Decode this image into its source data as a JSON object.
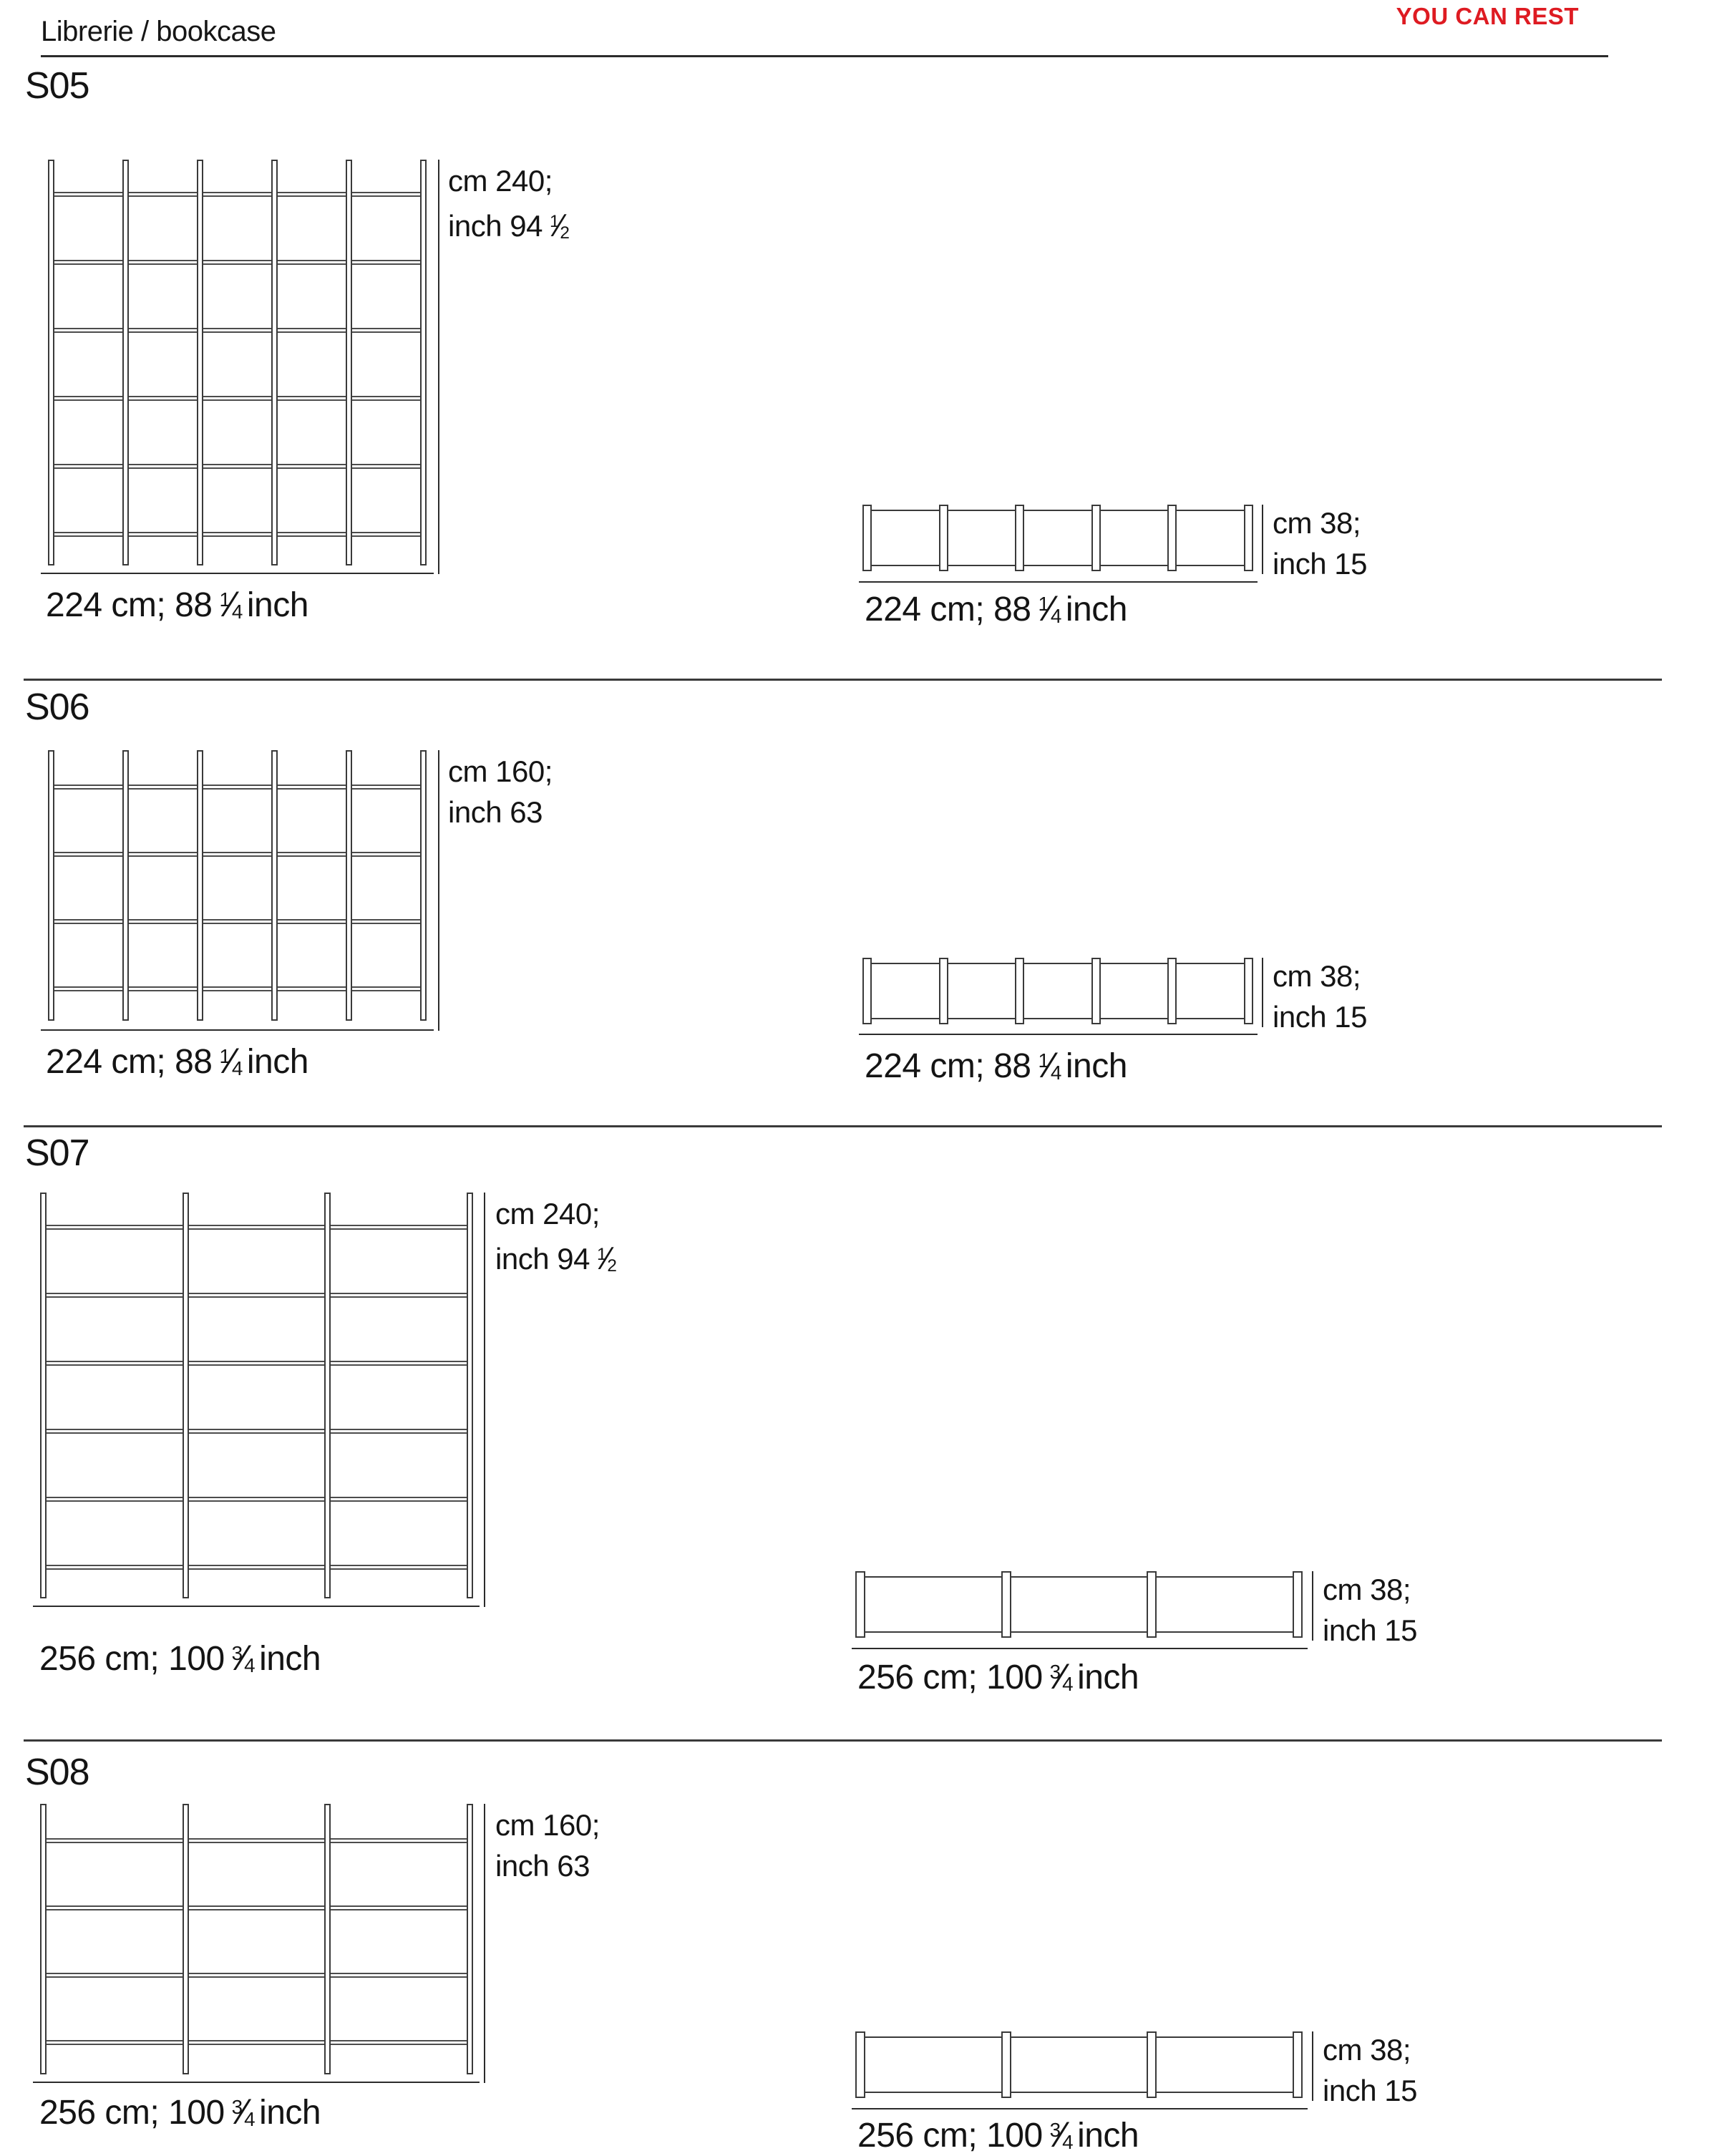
{
  "page": {
    "title": "Librerie / bookcase",
    "brand": "YOU CAN REST",
    "brand_color": "#de1b22",
    "line_color": "#2b2b2b"
  },
  "sections": [
    {
      "id": "S05",
      "front": {
        "posts": 6,
        "shelves": 6,
        "height_label": {
          "line1": "cm 240;",
          "line2": "inch 94",
          "frac": {
            "num": "1",
            "den": "2"
          }
        },
        "width_label": {
          "prefix": "224 cm; 88",
          "frac": {
            "num": "1",
            "den": "4"
          },
          "suffix": "inch"
        }
      },
      "plan": {
        "posts": 6,
        "depth_label": {
          "line1": "cm 38;",
          "line2": "inch 15",
          "frac": null
        },
        "width_label": {
          "prefix": "224 cm; 88",
          "frac": {
            "num": "1",
            "den": "4"
          },
          "suffix": "inch"
        }
      }
    },
    {
      "id": "S06",
      "front": {
        "posts": 6,
        "shelves": 4,
        "height_label": {
          "line1": "cm 160;",
          "line2": "inch 63",
          "frac": null
        },
        "width_label": {
          "prefix": "224 cm; 88",
          "frac": {
            "num": "1",
            "den": "4"
          },
          "suffix": "inch"
        }
      },
      "plan": {
        "posts": 6,
        "depth_label": {
          "line1": "cm 38;",
          "line2": "inch 15",
          "frac": null
        },
        "width_label": {
          "prefix": "224 cm; 88",
          "frac": {
            "num": "1",
            "den": "4"
          },
          "suffix": "inch"
        }
      }
    },
    {
      "id": "S07",
      "front": {
        "posts": 4,
        "shelves": 6,
        "height_label": {
          "line1": "cm 240;",
          "line2": "inch 94",
          "frac": {
            "num": "1",
            "den": "2"
          }
        },
        "width_label": {
          "prefix": "256 cm; 100",
          "frac": {
            "num": "3",
            "den": "4"
          },
          "suffix": "inch"
        }
      },
      "plan": {
        "posts": 4,
        "depth_label": {
          "line1": "cm 38;",
          "line2": "inch 15",
          "frac": null
        },
        "width_label": {
          "prefix": "256 cm; 100",
          "frac": {
            "num": "3",
            "den": "4"
          },
          "suffix": "inch"
        }
      }
    },
    {
      "id": "S08",
      "front": {
        "posts": 4,
        "shelves": 4,
        "height_label": {
          "line1": "cm 160;",
          "line2": "inch 63",
          "frac": null
        },
        "width_label": {
          "prefix": "256 cm; 100",
          "frac": {
            "num": "3",
            "den": "4"
          },
          "suffix": "inch"
        }
      },
      "plan": {
        "posts": 4,
        "depth_label": {
          "line1": "cm 38;",
          "line2": "inch 15",
          "frac": null
        },
        "width_label": {
          "prefix": "256 cm; 100",
          "frac": {
            "num": "3",
            "den": "4"
          },
          "suffix": "inch"
        }
      }
    }
  ]
}
